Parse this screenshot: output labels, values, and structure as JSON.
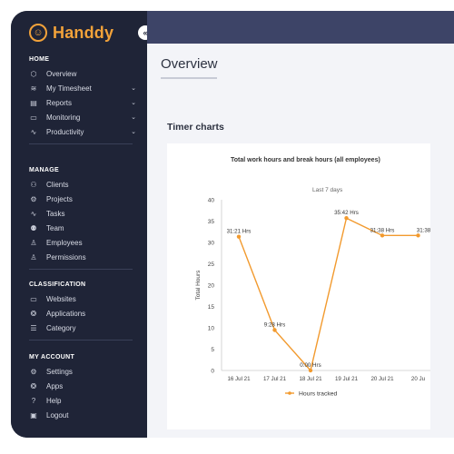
{
  "brand": {
    "name": "Handdy",
    "logo_icon": "handdy-logo-icon"
  },
  "collapse_label": "«",
  "sidebar": {
    "sections": [
      {
        "title": "HOME",
        "items": [
          {
            "label": "Overview",
            "icon": "cube-icon"
          },
          {
            "label": "My Timesheet",
            "icon": "layers-icon",
            "chevron": "⌄"
          },
          {
            "label": "Reports",
            "icon": "report-icon",
            "chevron": "⌄"
          },
          {
            "label": "Monitoring",
            "icon": "monitor-icon",
            "chevron": "⌄"
          },
          {
            "label": "Productivity",
            "icon": "pulse-icon",
            "chevron": "⌄"
          }
        ]
      },
      {
        "title": "MANAGE",
        "items": [
          {
            "label": "Clients",
            "icon": "users-icon"
          },
          {
            "label": "Projects",
            "icon": "gear-icon"
          },
          {
            "label": "Tasks",
            "icon": "pulse-icon"
          },
          {
            "label": "Team",
            "icon": "team-icon"
          },
          {
            "label": "Employees",
            "icon": "user-icon"
          },
          {
            "label": "Permissions",
            "icon": "user-check-icon"
          }
        ]
      },
      {
        "title": "CLASSIFICATION",
        "items": [
          {
            "label": "Websites",
            "icon": "monitor-icon"
          },
          {
            "label": "Applications",
            "icon": "apps-icon"
          },
          {
            "label": "Category",
            "icon": "list-icon"
          }
        ]
      },
      {
        "title": "MY ACCOUNT",
        "items": [
          {
            "label": "Settings",
            "icon": "gear-icon"
          },
          {
            "label": "Apps",
            "icon": "apps-icon"
          },
          {
            "label": "Help",
            "icon": "help-icon"
          },
          {
            "label": "Logout",
            "icon": "logout-icon"
          }
        ]
      }
    ]
  },
  "main": {
    "page_title": "Overview",
    "section_title": "Timer charts"
  },
  "chart_data": {
    "type": "line",
    "title": "Total work hours and break hours (all employees)",
    "subtitle": "Last 7 days",
    "ylabel": "Total Hours",
    "xlabel": "",
    "ylim": [
      0,
      40
    ],
    "yticks": [
      0,
      5,
      10,
      15,
      20,
      25,
      30,
      35,
      40
    ],
    "categories": [
      "16 Jul 21",
      "17 Jul 21",
      "18 Jul 21",
      "19 Jul 21",
      "20 Jul 21",
      "20 Ju"
    ],
    "series": [
      {
        "name": "Hours tracked",
        "color": "#f29a2e",
        "values": [
          31.35,
          9.47,
          0.0,
          35.7,
          31.63,
          31.63
        ],
        "labels": [
          "31:21 Hrs",
          "9:28 Hrs",
          "0:00 Hrs",
          "35:42 Hrs",
          "31:38 Hrs",
          "31:38"
        ]
      }
    ],
    "grid": false,
    "legend": "bottom"
  }
}
